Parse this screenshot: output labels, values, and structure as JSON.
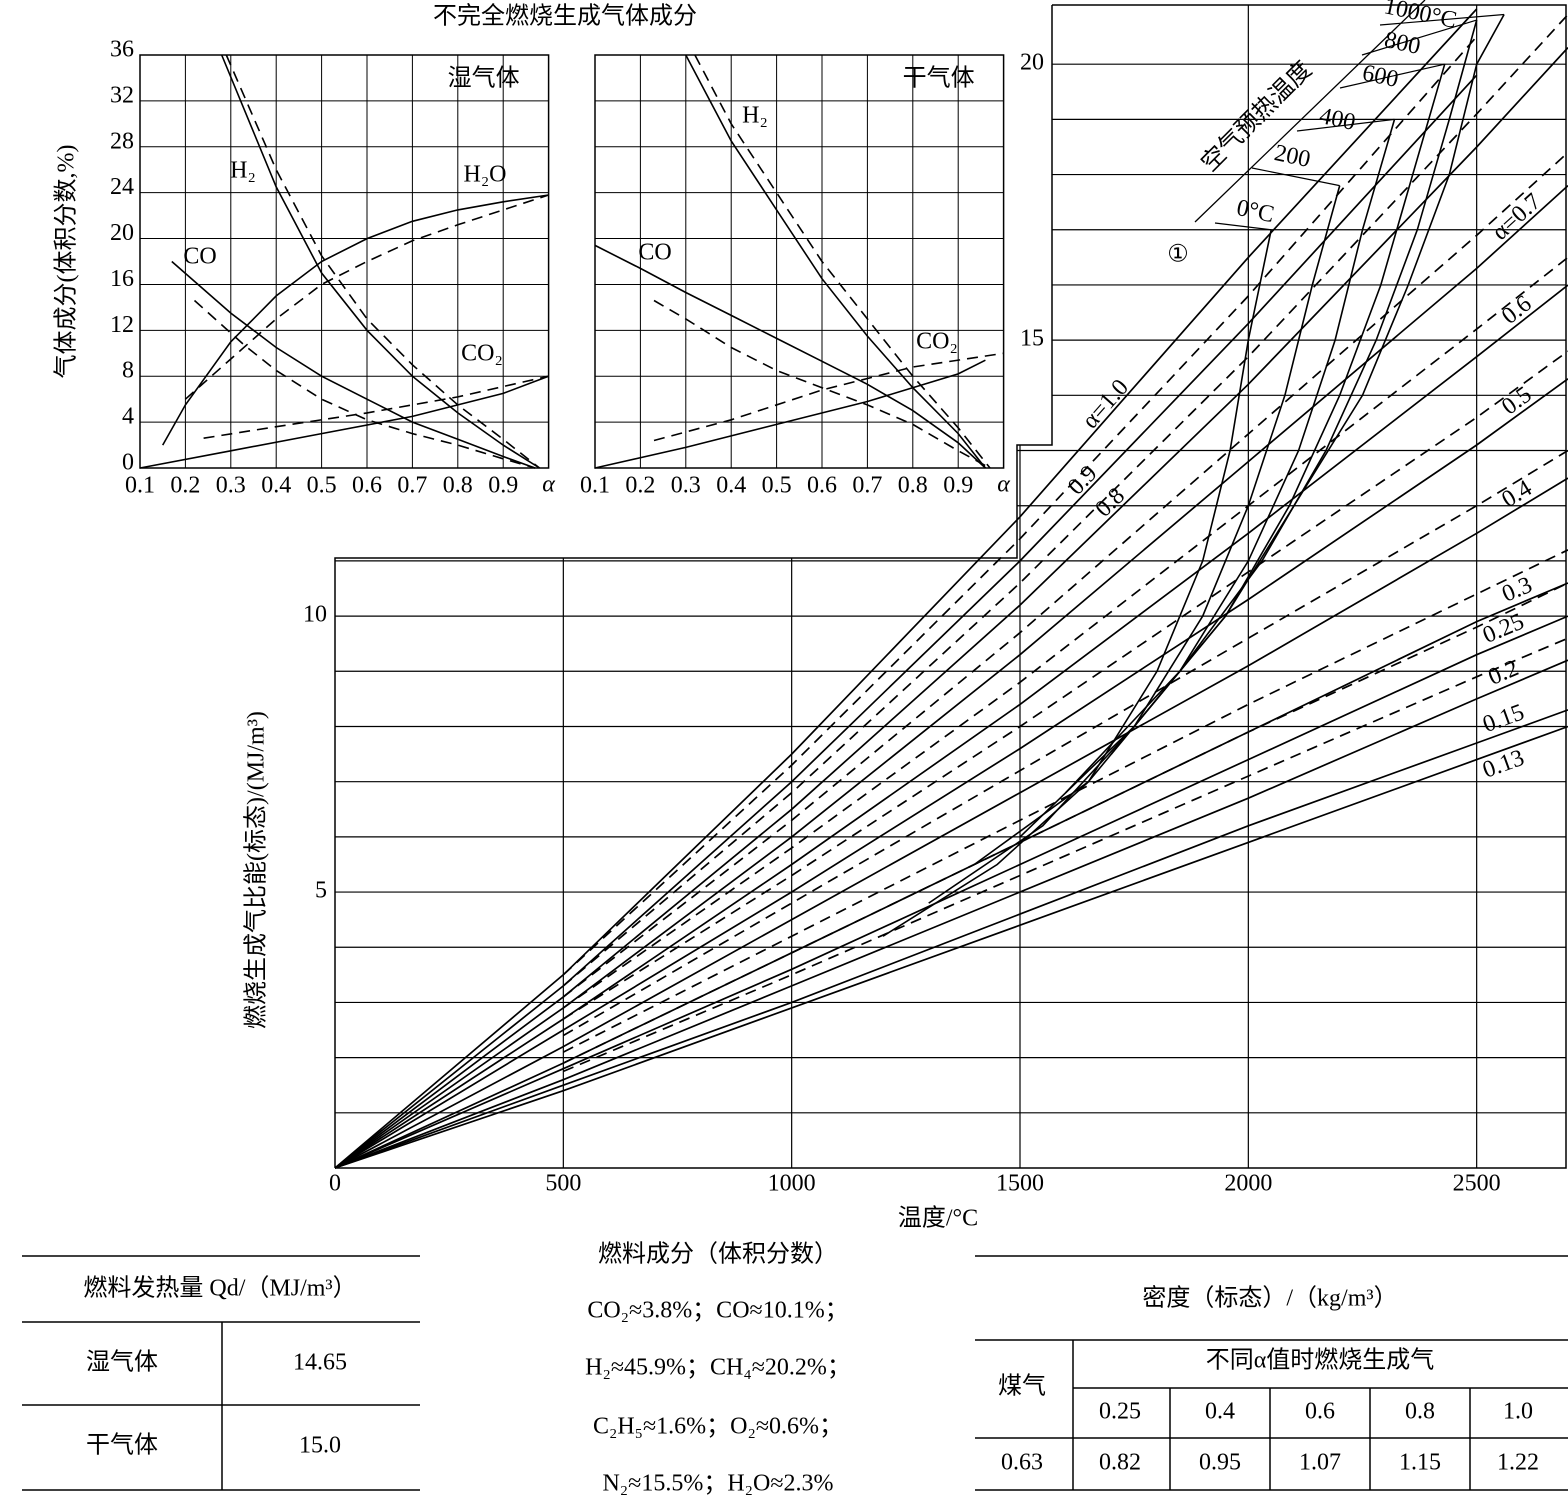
{
  "figure_title": "不完全燃烧生成气体成分",
  "chart_data": [
    {
      "type": "line",
      "title": "湿气体",
      "ylabel": "气体成分(体积分数,%)",
      "xlabel": "α",
      "xlim": [
        0.1,
        1.0
      ],
      "ylim": [
        0,
        36
      ],
      "xticks": [
        0.1,
        0.2,
        0.3,
        0.4,
        0.5,
        0.6,
        0.7,
        0.8,
        0.9
      ],
      "yticks": [
        0,
        4,
        8,
        12,
        16,
        20,
        24,
        28,
        32,
        36
      ],
      "grid": true,
      "color": "#000000",
      "series": [
        {
          "name": "H₂",
          "x": [
            0.28,
            0.4,
            0.5,
            0.6,
            0.7,
            0.8,
            0.9,
            0.98
          ],
          "values": [
            36,
            24.5,
            17,
            12,
            8,
            4.8,
            2,
            0
          ],
          "dashed_x": [
            0.29,
            0.4,
            0.5,
            0.6,
            0.7,
            0.8,
            0.9,
            0.98
          ],
          "dashed_values": [
            36,
            26,
            18.5,
            13,
            9,
            5.5,
            2.5,
            0
          ]
        },
        {
          "name": "H₂O",
          "x": [
            0.15,
            0.2,
            0.3,
            0.4,
            0.5,
            0.6,
            0.7,
            0.8,
            0.9,
            1.0
          ],
          "values": [
            2,
            5.5,
            11,
            15,
            18,
            20,
            21.5,
            22.5,
            23.2,
            23.8
          ],
          "dashed_x": [
            0.2,
            0.3,
            0.4,
            0.5,
            0.6,
            0.7,
            0.8,
            0.9,
            1.0
          ],
          "dashed_values": [
            6,
            9.5,
            13,
            16,
            18,
            19.8,
            21.2,
            22.5,
            23.8
          ]
        },
        {
          "name": "CO",
          "x": [
            0.17,
            0.3,
            0.4,
            0.5,
            0.6,
            0.7,
            0.8,
            0.9,
            0.97
          ],
          "values": [
            18,
            13.5,
            10.5,
            8,
            6,
            4,
            2.5,
            1,
            0
          ],
          "dashed_x": [
            0.22,
            0.33,
            0.4,
            0.5,
            0.6,
            0.7,
            0.8,
            0.9,
            0.97
          ],
          "dashed_values": [
            14.6,
            10.7,
            8.5,
            6,
            4.2,
            3,
            2,
            0.8,
            0
          ]
        },
        {
          "name": "CO₂",
          "x": [
            0.1,
            0.3,
            0.5,
            0.7,
            0.9,
            1.0
          ],
          "values": [
            0,
            1.5,
            3,
            4.5,
            6.5,
            8
          ],
          "dashed_x": [
            0.24,
            0.4,
            0.6,
            0.8,
            1.0
          ],
          "dashed_values": [
            2.6,
            3.6,
            4.8,
            6.2,
            8
          ]
        }
      ]
    },
    {
      "type": "line",
      "title": "干气体",
      "xlabel": "α",
      "xlim": [
        0.1,
        1.0
      ],
      "ylim": [
        0,
        36
      ],
      "xticks": [
        0.1,
        0.2,
        0.3,
        0.4,
        0.5,
        0.6,
        0.7,
        0.8,
        0.9
      ],
      "yticks": [
        0,
        4,
        8,
        12,
        16,
        20,
        24,
        28,
        32,
        36
      ],
      "grid": true,
      "color": "#000000",
      "series": [
        {
          "name": "H₂",
          "x": [
            0.3,
            0.4,
            0.5,
            0.6,
            0.7,
            0.8,
            0.9,
            0.96
          ],
          "values": [
            36,
            28.5,
            22.5,
            16.5,
            11.5,
            7,
            3,
            0
          ],
          "dashed_x": [
            0.32,
            0.4,
            0.5,
            0.6,
            0.7,
            0.8,
            0.9,
            0.97
          ],
          "dashed_values": [
            36,
            30,
            24,
            18,
            13,
            8,
            3.5,
            0
          ]
        },
        {
          "name": "CO",
          "x": [
            0.1,
            0.2,
            0.3,
            0.4,
            0.5,
            0.6,
            0.7,
            0.8,
            0.9,
            0.96
          ],
          "values": [
            19.4,
            17.4,
            15.3,
            13.3,
            11.3,
            9.3,
            7.3,
            5,
            2.2,
            0
          ],
          "dashed_x": [
            0.23,
            0.3,
            0.4,
            0.5,
            0.6,
            0.7,
            0.8,
            0.9,
            0.97
          ],
          "dashed_values": [
            14.6,
            13,
            10.5,
            8.5,
            7,
            5.5,
            3.8,
            1.5,
            0
          ]
        },
        {
          "name": "CO₂",
          "x": [
            0.1,
            0.3,
            0.5,
            0.7,
            0.9,
            0.96
          ],
          "values": [
            0,
            1.8,
            3.8,
            5.8,
            8.2,
            9.4
          ],
          "dashed_x": [
            0.23,
            0.4,
            0.6,
            0.8,
            1.0
          ],
          "dashed_values": [
            2.4,
            4.2,
            6.8,
            8.8,
            10
          ]
        }
      ]
    },
    {
      "type": "line",
      "xlabel": "温度/°C",
      "ylabel": "燃烧生成气比能(标态)/(MJ/m³)",
      "xlim": [
        0,
        2700
      ],
      "ylim": [
        0,
        21
      ],
      "xticks": [
        0,
        500,
        1000,
        1500,
        2000,
        2500
      ],
      "yticks": [
        5,
        10,
        15,
        20
      ],
      "yminor": [
        1,
        2,
        3,
        4,
        6,
        7,
        8,
        9,
        11,
        12,
        13,
        14,
        16,
        17,
        18,
        19
      ],
      "grid": true,
      "color": "#000000",
      "x": [
        0,
        500,
        1000,
        1500,
        2000,
        2500,
        2700
      ],
      "series": [
        {
          "name": "α=1.0",
          "values": [
            0,
            3.5,
            7.5,
            11.8,
            16.5,
            21.0,
            null
          ]
        },
        {
          "name": "0.9",
          "values": [
            0,
            3.3,
            7.0,
            11.0,
            15.3,
            19.8,
            null
          ],
          "dashed_values": [
            null,
            3.5,
            7.3,
            11.4,
            15.8,
            20.5,
            null
          ]
        },
        {
          "name": "0.8",
          "values": [
            0,
            3.1,
            6.5,
            10.2,
            14.2,
            18.5,
            20.3
          ],
          "dashed_values": [
            null,
            3.3,
            6.8,
            10.6,
            14.7,
            19.1,
            20.9
          ]
        },
        {
          "name": "α=0.7",
          "values": [
            0,
            2.9,
            6.0,
            9.3,
            12.8,
            16.3,
            17.8
          ],
          "dashed_values": [
            null,
            3.1,
            6.3,
            9.7,
            13.3,
            16.9,
            18.4
          ]
        },
        {
          "name": "0.6",
          "values": [
            0,
            2.7,
            5.5,
            8.4,
            11.5,
            14.7,
            16.0
          ],
          "dashed_values": [
            null,
            2.9,
            5.8,
            8.8,
            12.0,
            15.2,
            16.5
          ]
        },
        {
          "name": "0.5",
          "values": [
            0,
            2.5,
            5.0,
            7.6,
            10.3,
            13.1,
            14.3
          ],
          "dashed_values": [
            null,
            2.7,
            5.3,
            8.0,
            10.8,
            13.6,
            14.8
          ]
        },
        {
          "name": "0.4",
          "values": [
            0,
            2.2,
            4.5,
            6.8,
            9.1,
            11.5,
            12.5
          ],
          "dashed_values": [
            null,
            2.4,
            4.8,
            7.2,
            9.6,
            12.0,
            13.0
          ]
        },
        {
          "name": "0.3",
          "values": [
            0,
            1.9,
            3.9,
            5.9,
            7.9,
            9.9,
            10.6
          ],
          "dashed_values": [
            null,
            2.1,
            4.2,
            6.3,
            8.4,
            10.4,
            11.2
          ]
        },
        {
          "name": "0.25",
          "values": [
            0,
            1.8,
            3.6,
            5.5,
            7.4,
            9.3,
            10.0
          ],
          "dashed_values": [
            null,
            1.9,
            3.9,
            5.9,
            7.9,
            9.8,
            10.6
          ]
        },
        {
          "name": "0.2",
          "values": [
            0,
            1.6,
            3.3,
            5.0,
            6.7,
            8.5,
            9.2
          ],
          "dashed_values": [
            null,
            1.75,
            3.5,
            5.3,
            7.1,
            8.9,
            9.6
          ]
        },
        {
          "name": "0.15",
          "values": [
            0,
            1.5,
            3.0,
            4.6,
            6.2,
            7.7,
            8.3
          ]
        },
        {
          "name": "0.13",
          "values": [
            0,
            1.4,
            2.9,
            4.4,
            5.9,
            7.4,
            8.0
          ]
        }
      ],
      "preheat": {
        "title": "空气预热温度",
        "marker": "①",
        "curves": [
          {
            "name": "0°C",
            "x": [
              2050,
              2000,
              1960,
              1900,
              1800,
              1650,
              1450,
              1200
            ],
            "values": [
              17.0,
              15.0,
              13.0,
              11.0,
              9.0,
              7.0,
              5.5,
              4.2
            ]
          },
          {
            "name": "200",
            "x": [
              2200,
              2140,
              2080,
              2000,
              1900,
              1750,
              1550,
              1300
            ],
            "values": [
              17.8,
              16.0,
              14.0,
              12.0,
              10.0,
              8.0,
              6.2,
              4.8
            ]
          },
          {
            "name": "400",
            "x": [
              2320,
              2250,
              2190,
              2110,
              2000,
              1850,
              1650,
              1400
            ],
            "values": [
              19.0,
              17.0,
              15.0,
              13.0,
              11.0,
              9.0,
              7.0,
              5.5
            ]
          },
          {
            "name": "600",
            "x": [
              2430,
              2360,
              2290,
              2200,
              2090,
              1950,
              1750,
              1500
            ],
            "values": [
              20.0,
              18.0,
              16.0,
              14.0,
              12.0,
              10.0,
              8.0,
              6.0
            ]
          },
          {
            "name": "800",
            "x": [
              2500,
              2440,
              2370,
              2280,
              2170,
              2030,
              1850,
              1600
            ],
            "values": [
              20.8,
              19.0,
              17.0,
              15.0,
              13.0,
              11.0,
              9.0,
              6.8
            ]
          },
          {
            "name": "1000°C",
            "x": [
              2560,
              2500,
              2440,
              2350,
              2250,
              2100,
              1950,
              1700
            ],
            "values": [
              20.9,
              20.0,
              18.0,
              16.0,
              14.0,
              12.0,
              10.0,
              7.5
            ]
          }
        ]
      }
    }
  ],
  "heat_table": {
    "header": "燃料发热量 Qd/（MJ/m³）",
    "rows": [
      [
        "湿气体",
        "14.65"
      ],
      [
        "干气体",
        "15.0"
      ]
    ]
  },
  "composition": {
    "title": "燃料成分（体积分数）",
    "lines": [
      "CO₂≈3.8%；CO≈10.1%；",
      "H₂≈45.9%；CH₄≈20.2%；",
      "C₂H₅≈1.6%；O₂≈0.6%；",
      "N₂≈15.5%；H₂O≈2.3%"
    ]
  },
  "density_table": {
    "header": "密度（标态）/（kg/m³）",
    "row_header": "煤气",
    "group_header": "不同α值时燃烧生成气",
    "alphas": [
      "0.25",
      "0.4",
      "0.6",
      "0.8",
      "1.0"
    ],
    "gas": "0.63",
    "values": [
      "0.82",
      "0.95",
      "1.07",
      "1.15",
      "1.22"
    ]
  }
}
